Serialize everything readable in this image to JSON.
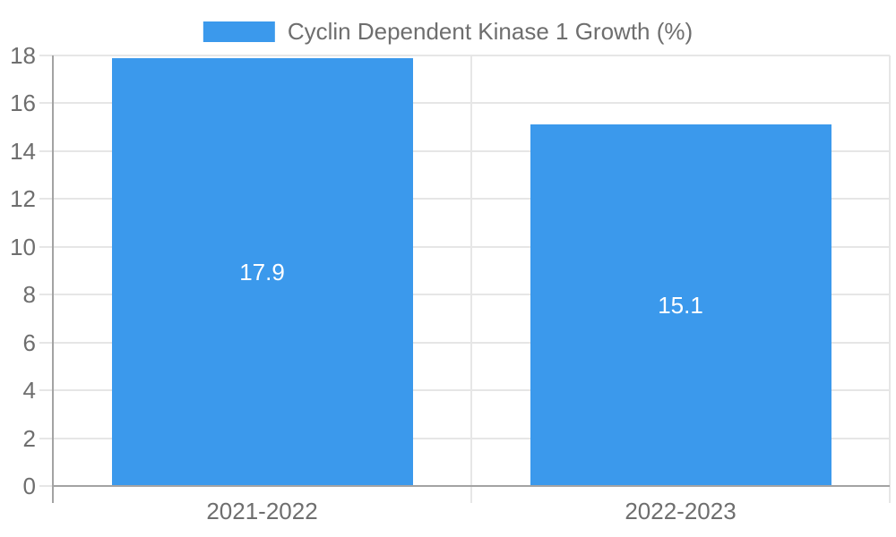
{
  "legend": {
    "label": "Cyclin Dependent Kinase 1 Growth (%)"
  },
  "colors": {
    "bar": "#3b99ec",
    "axis_text": "#6e6e6e",
    "gridline": "#e6e6e6",
    "axis_line": "#a3a3a3",
    "value_label": "#ffffff",
    "background": "#ffffff"
  },
  "chart_data": {
    "type": "bar",
    "title": "Cyclin Dependent Kinase 1 Growth (%)",
    "categories": [
      "2021-2022",
      "2022-2023"
    ],
    "series": [
      {
        "name": "Cyclin Dependent Kinase 1 Growth (%)",
        "values": [
          17.9,
          15.1
        ],
        "labels": [
          "17.9",
          "15.1"
        ]
      }
    ],
    "ylim": [
      0,
      18
    ],
    "yticks": [
      0,
      2,
      4,
      6,
      8,
      10,
      12,
      14,
      16,
      18
    ],
    "xlabel": "",
    "ylabel": "",
    "grid": true,
    "legend_position": "top",
    "value_labels_inside": true
  }
}
